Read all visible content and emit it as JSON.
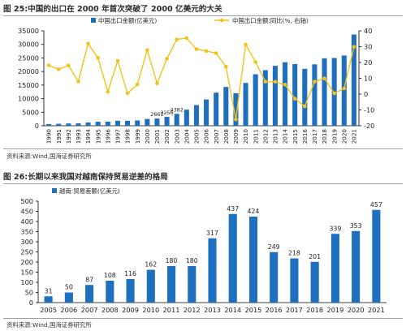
{
  "figures": [
    {
      "title": "图 25:中国的出口在 2000 年首次突破了 2000 亿美元的大关",
      "source": "资料来源:Wind,国海证券研究所"
    },
    {
      "title": "图 26:长期以来我国对越南保持贸易逆差的格局",
      "source": "资料来源:Wind,国海证券研究所"
    }
  ],
  "colors": {
    "bar": "#1f6fbf",
    "line": "#f0c419",
    "axis": "#000000"
  },
  "chart_data": [
    {
      "type": "bar",
      "secondary_type": "line",
      "title": "",
      "categories": [
        "1990",
        "1991",
        "1992",
        "1993",
        "1994",
        "1995",
        "1996",
        "1997",
        "1998",
        "1999",
        "2000",
        "2001",
        "2002",
        "2003",
        "2004",
        "2005",
        "2006",
        "2007",
        "2008",
        "2009",
        "2010",
        "2011",
        "2012",
        "2013",
        "2014",
        "2015",
        "2016",
        "2017",
        "2018",
        "2019",
        "2020",
        "2021"
      ],
      "series": [
        {
          "name": "中国出口金额(亿美元)",
          "axis": "left",
          "values": [
            621,
            719,
            849,
            917,
            1210,
            1488,
            1511,
            1828,
            1837,
            1949,
            2492,
            2661,
            3256,
            4382,
            5934,
            7620,
            9690,
            12205,
            14307,
            12016,
            15778,
            18984,
            20487,
            22090,
            23423,
            22735,
            20976,
            22633,
            24867,
            24995,
            25900,
            33640
          ],
          "data_labels": {
            "11": "2661",
            "12": "3256",
            "13": "4382"
          }
        },
        {
          "name": "中国出口金额:同比(%, 右轴)",
          "axis": "right",
          "values": [
            18.2,
            15.7,
            18.1,
            8.0,
            31.9,
            22.9,
            1.5,
            21.0,
            0.5,
            6.1,
            27.8,
            6.8,
            22.4,
            34.6,
            35.4,
            28.4,
            27.2,
            25.9,
            17.3,
            -16.0,
            31.3,
            20.3,
            7.9,
            7.8,
            6.0,
            -2.9,
            -7.7,
            7.9,
            9.9,
            0.5,
            3.6,
            29.9
          ]
        }
      ],
      "y_left": {
        "min": 0,
        "max": 35000,
        "ticks": [
          0,
          5000,
          10000,
          15000,
          20000,
          25000,
          30000,
          35000
        ]
      },
      "y_right": {
        "min": -20,
        "max": 40,
        "ticks": [
          -20,
          -10,
          0,
          10,
          20,
          30,
          40
        ]
      },
      "legend": "top"
    },
    {
      "type": "bar",
      "title": "",
      "categories": [
        "2005",
        "2006",
        "2007",
        "2008",
        "2009",
        "2010",
        "2011",
        "2012",
        "2013",
        "2014",
        "2015",
        "2016",
        "2017",
        "2018",
        "2019",
        "2020",
        "2021"
      ],
      "series": [
        {
          "name": "越南:贸易差额(亿美元)",
          "values": [
            31,
            50,
            87,
            108,
            116,
            162,
            180,
            180,
            317,
            437,
            424,
            249,
            218,
            201,
            339,
            353,
            457
          ]
        }
      ],
      "y": {
        "min": 0,
        "max": 500,
        "ticks": [
          0,
          50,
          100,
          150,
          200,
          250,
          300,
          350,
          400,
          450,
          500
        ]
      },
      "legend": "top-left"
    }
  ]
}
